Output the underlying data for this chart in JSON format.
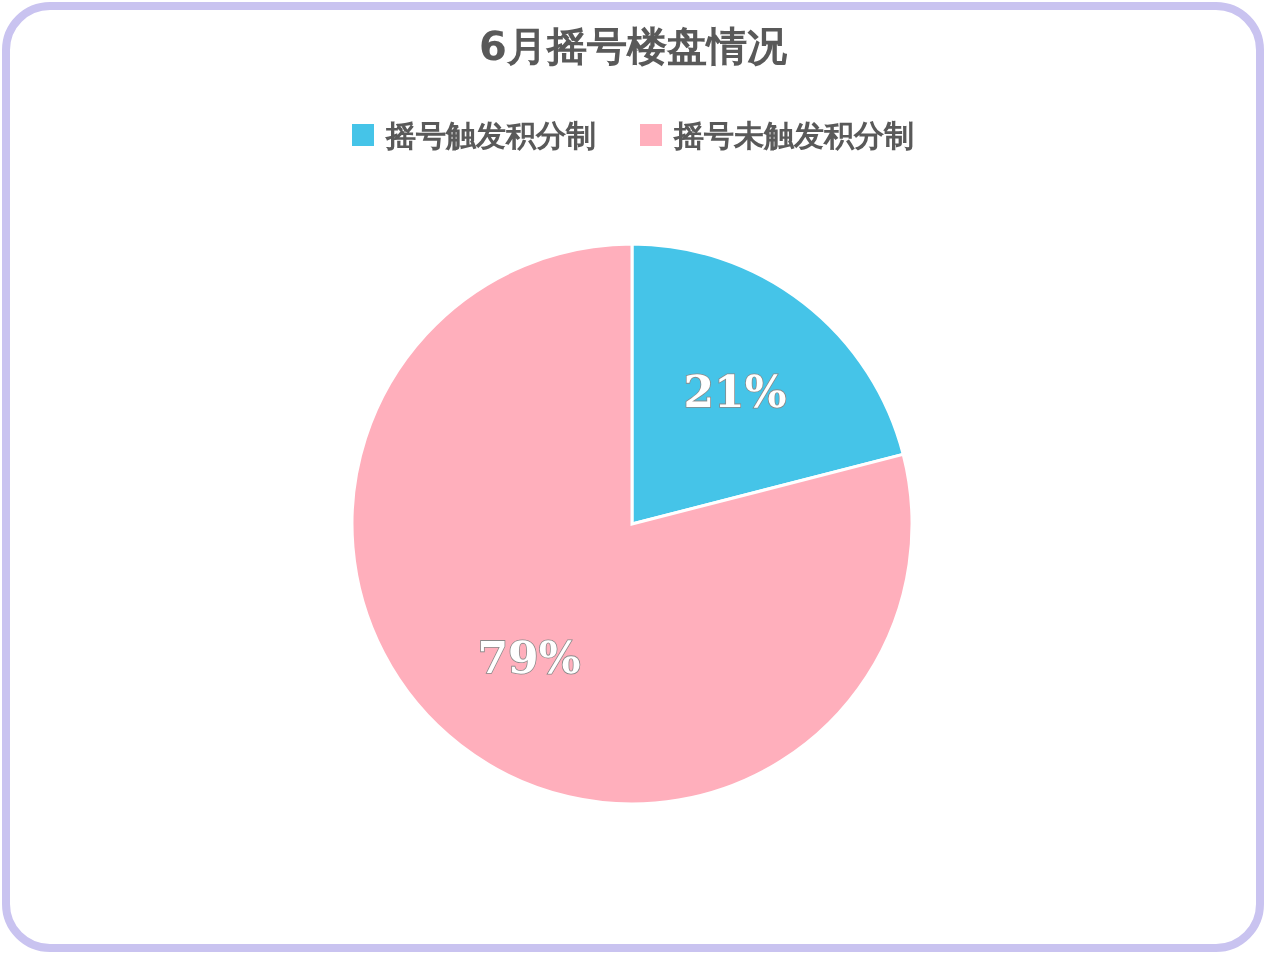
{
  "chart_data": {
    "type": "pie",
    "title": "6月摇号楼盘情况",
    "categories": [
      "摇号触发积分制",
      "摇号未触发积分制"
    ],
    "values": [
      21,
      79
    ],
    "colors": [
      "#45c4e8",
      "#ffafbc"
    ],
    "value_labels": [
      "21%",
      "79%"
    ],
    "legend": "top"
  }
}
